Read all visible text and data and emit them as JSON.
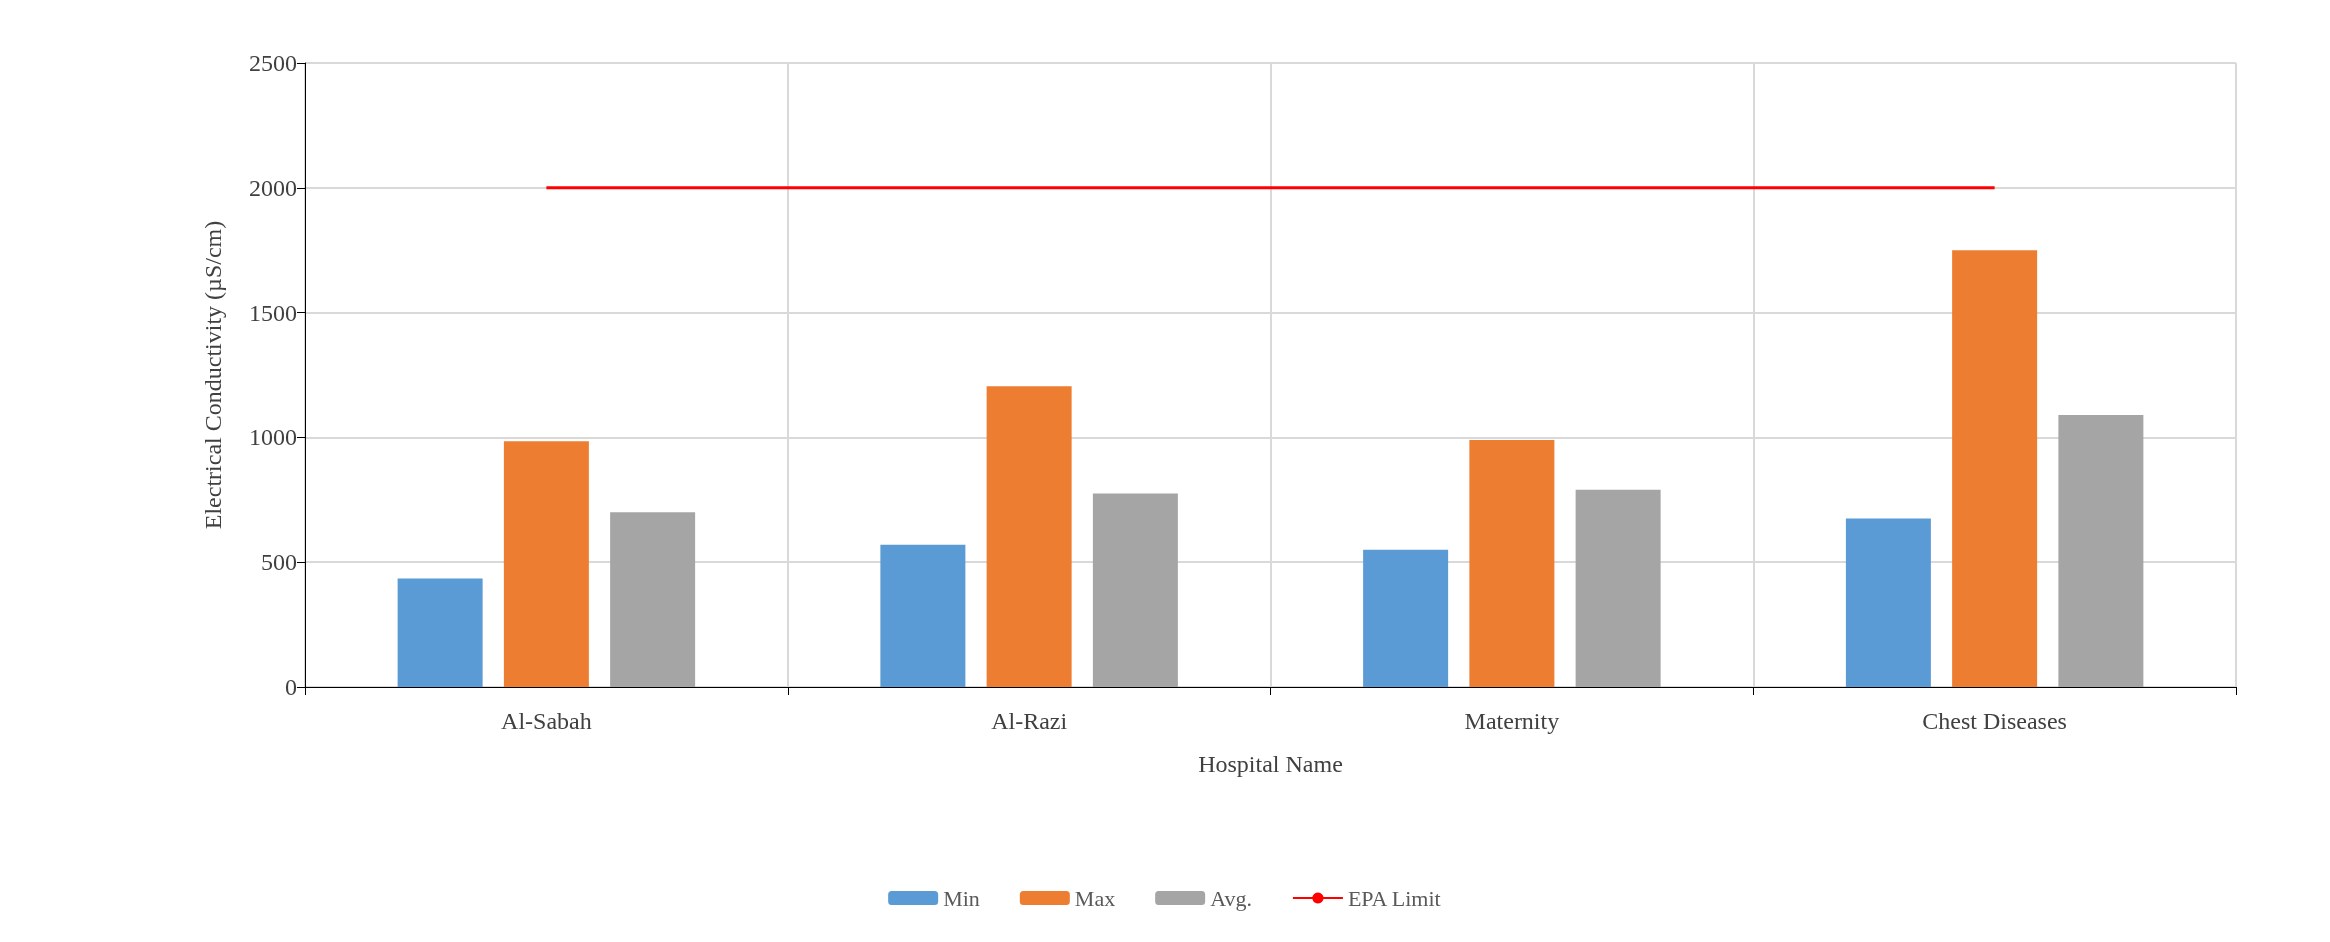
{
  "chart_data": {
    "type": "bar",
    "xlabel": "Hospital Name",
    "ylabel": "Electrical Conductivity (µS/cm)",
    "categories": [
      "Al-Sabah",
      "Al-Razi",
      "Maternity",
      "Chest Diseases"
    ],
    "series": [
      {
        "name": "Min",
        "color": "#5b9bd5",
        "values": [
          435,
          570,
          550,
          675
        ]
      },
      {
        "name": "Max",
        "color": "#ed7d31",
        "values": [
          985,
          1205,
          990,
          1750
        ]
      },
      {
        "name": "Avg.",
        "color": "#a5a5a5",
        "values": [
          700,
          775,
          790,
          1090
        ]
      },
      {
        "name": "EPA Limit",
        "type": "line",
        "color": "#ff0000",
        "marker": "none",
        "values": [
          2000,
          2000,
          2000,
          2000
        ]
      }
    ],
    "ylim": [
      0,
      2500
    ],
    "yticks": [
      0,
      500,
      1000,
      1500,
      2000,
      2500
    ],
    "grid": true,
    "legend": "bottom"
  }
}
